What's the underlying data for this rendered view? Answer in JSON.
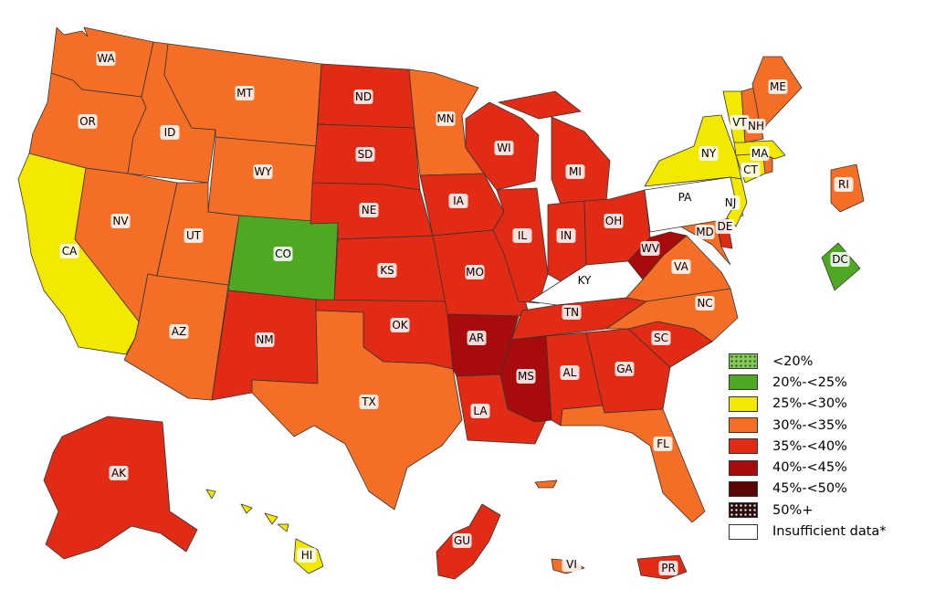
{
  "legend": {
    "items": [
      {
        "label": "<20%",
        "color": "#86c95a",
        "pattern": "dots-light"
      },
      {
        "label": "20%-<25%",
        "color": "#4fa821",
        "pattern": ""
      },
      {
        "label": "25%-<30%",
        "color": "#f3e800",
        "pattern": ""
      },
      {
        "label": "30%-<35%",
        "color": "#f46f25",
        "pattern": ""
      },
      {
        "label": "35%-<40%",
        "color": "#e22b14",
        "pattern": ""
      },
      {
        "label": "40%-<45%",
        "color": "#a80b0b",
        "pattern": ""
      },
      {
        "label": "45%-<50%",
        "color": "#5c0505",
        "pattern": ""
      },
      {
        "label": "50%+",
        "color": "#2a0c0c",
        "pattern": "dots-dark"
      },
      {
        "label": "Insufficient data*",
        "color": "#ffffff",
        "pattern": ""
      }
    ]
  },
  "regions": {
    "WA": {
      "label": "WA",
      "category": "30%-<35%"
    },
    "OR": {
      "label": "OR",
      "category": "30%-<35%"
    },
    "CA": {
      "label": "CA",
      "category": "25%-<30%"
    },
    "ID": {
      "label": "ID",
      "category": "30%-<35%"
    },
    "NV": {
      "label": "NV",
      "category": "30%-<35%"
    },
    "MT": {
      "label": "MT",
      "category": "30%-<35%"
    },
    "WY": {
      "label": "WY",
      "category": "30%-<35%"
    },
    "UT": {
      "label": "UT",
      "category": "30%-<35%"
    },
    "AZ": {
      "label": "AZ",
      "category": "30%-<35%"
    },
    "CO": {
      "label": "CO",
      "category": "20%-<25%"
    },
    "NM": {
      "label": "NM",
      "category": "35%-<40%"
    },
    "ND": {
      "label": "ND",
      "category": "35%-<40%"
    },
    "SD": {
      "label": "SD",
      "category": "35%-<40%"
    },
    "NE": {
      "label": "NE",
      "category": "35%-<40%"
    },
    "KS": {
      "label": "KS",
      "category": "35%-<40%"
    },
    "OK": {
      "label": "OK",
      "category": "35%-<40%"
    },
    "TX": {
      "label": "TX",
      "category": "30%-<35%"
    },
    "MN": {
      "label": "MN",
      "category": "30%-<35%"
    },
    "IA": {
      "label": "IA",
      "category": "35%-<40%"
    },
    "MO": {
      "label": "MO",
      "category": "35%-<40%"
    },
    "AR": {
      "label": "AR",
      "category": "40%-<45%"
    },
    "LA": {
      "label": "LA",
      "category": "35%-<40%"
    },
    "WI": {
      "label": "WI",
      "category": "35%-<40%"
    },
    "IL": {
      "label": "IL",
      "category": "35%-<40%"
    },
    "MI": {
      "label": "MI",
      "category": "35%-<40%"
    },
    "IN": {
      "label": "IN",
      "category": "35%-<40%"
    },
    "OH": {
      "label": "OH",
      "category": "35%-<40%"
    },
    "KY": {
      "label": "KY",
      "category": "Insufficient data*"
    },
    "TN": {
      "label": "TN",
      "category": "35%-<40%"
    },
    "MS": {
      "label": "MS",
      "category": "40%-<45%"
    },
    "AL": {
      "label": "AL",
      "category": "35%-<40%"
    },
    "GA": {
      "label": "GA",
      "category": "35%-<40%"
    },
    "FL": {
      "label": "FL",
      "category": "30%-<35%"
    },
    "SC": {
      "label": "SC",
      "category": "35%-<40%"
    },
    "NC": {
      "label": "NC",
      "category": "30%-<35%"
    },
    "VA": {
      "label": "VA",
      "category": "30%-<35%"
    },
    "WV": {
      "label": "WV",
      "category": "40%-<45%"
    },
    "MD": {
      "label": "MD",
      "category": "30%-<35%"
    },
    "DE": {
      "label": "DE",
      "category": "35%-<40%"
    },
    "PA": {
      "label": "PA",
      "category": "Insufficient data*"
    },
    "NJ": {
      "label": "NJ",
      "category": "25%-<30%"
    },
    "NY": {
      "label": "NY",
      "category": "25%-<30%"
    },
    "CT": {
      "label": "CT",
      "category": "25%-<30%"
    },
    "RI": {
      "label": "RI",
      "category": "30%-<35%"
    },
    "MA": {
      "label": "MA",
      "category": "25%-<30%"
    },
    "VT": {
      "label": "VT",
      "category": "25%-<30%"
    },
    "NH": {
      "label": "NH",
      "category": "30%-<35%"
    },
    "ME": {
      "label": "ME",
      "category": "30%-<35%"
    },
    "DC": {
      "label": "DC",
      "category": "20%-<25%"
    },
    "AK": {
      "label": "AK",
      "category": "35%-<40%"
    },
    "HI": {
      "label": "HI",
      "category": "25%-<30%"
    },
    "GU": {
      "label": "GU",
      "category": "35%-<40%"
    },
    "VI": {
      "label": "VI",
      "category": "30%-<35%"
    },
    "PR": {
      "label": "PR",
      "category": "35%-<40%"
    }
  }
}
